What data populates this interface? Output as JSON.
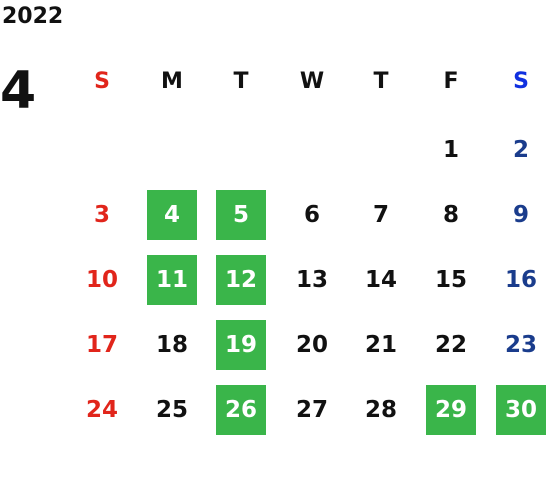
{
  "year": "2022",
  "month": "4",
  "colors": {
    "sunday": "#e1251b",
    "saturday": "#1a3c8c",
    "saturday_header": "#1030e0",
    "highlight": "#3ab54a",
    "text": "#111111"
  },
  "weekdays": [
    "S",
    "M",
    "T",
    "W",
    "T",
    "F",
    "S"
  ],
  "weeks": [
    [
      {
        "d": ""
      },
      {
        "d": ""
      },
      {
        "d": ""
      },
      {
        "d": ""
      },
      {
        "d": ""
      },
      {
        "d": "1"
      },
      {
        "d": "2"
      }
    ],
    [
      {
        "d": "3"
      },
      {
        "d": "4",
        "hl": true
      },
      {
        "d": "5",
        "hl": true
      },
      {
        "d": "6"
      },
      {
        "d": "7"
      },
      {
        "d": "8"
      },
      {
        "d": "9"
      }
    ],
    [
      {
        "d": "10"
      },
      {
        "d": "11",
        "hl": true
      },
      {
        "d": "12",
        "hl": true
      },
      {
        "d": "13"
      },
      {
        "d": "14"
      },
      {
        "d": "15"
      },
      {
        "d": "16"
      }
    ],
    [
      {
        "d": "17"
      },
      {
        "d": "18"
      },
      {
        "d": "19",
        "hl": true
      },
      {
        "d": "20"
      },
      {
        "d": "21"
      },
      {
        "d": "22"
      },
      {
        "d": "23"
      }
    ],
    [
      {
        "d": "24"
      },
      {
        "d": "25"
      },
      {
        "d": "26",
        "hl": true
      },
      {
        "d": "27"
      },
      {
        "d": "28"
      },
      {
        "d": "29",
        "hl": true
      },
      {
        "d": "30",
        "hl": true
      }
    ]
  ]
}
